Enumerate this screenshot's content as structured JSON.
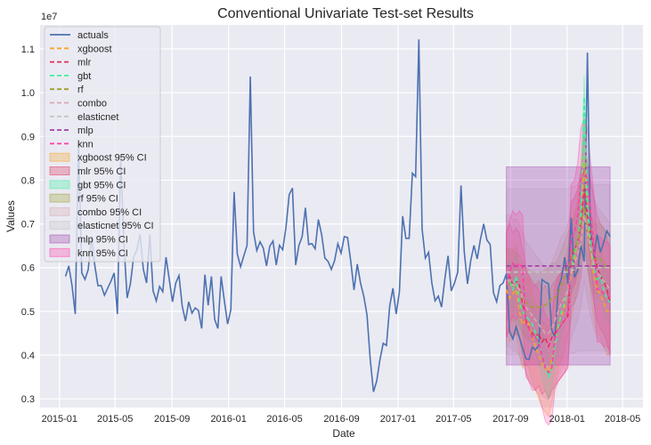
{
  "chart_data": {
    "type": "line",
    "title": "Conventional Univariate Test-set Results",
    "xlabel": "Date",
    "ylabel": "Values",
    "y_offset_label": "1e7",
    "xlim": [
      "2014-11-20",
      "2018-06-14"
    ],
    "ylim": [
      0.28,
      1.155
    ],
    "grid": true,
    "legend_placement": "upper-left",
    "x_ticks": [
      "2015-01",
      "2015-05",
      "2015-09",
      "2016-01",
      "2016-05",
      "2016-09",
      "2017-01",
      "2017-05",
      "2017-09",
      "2018-01",
      "2018-05"
    ],
    "y_ticks": [
      0.3,
      0.4,
      0.5,
      0.6,
      0.7,
      0.8,
      0.9,
      1.0,
      1.1
    ],
    "y_tick_labels": [
      "0.3",
      "0.4",
      "0.5",
      "0.6",
      "0.7",
      "0.8",
      "0.9",
      "1.0",
      "1.1"
    ],
    "dates": {
      "start": "2015-01-14",
      "frequency": "weekly"
    },
    "test_start_index": 136,
    "actuals": {
      "name": "actuals",
      "color": "#4c72b0",
      "values": [
        0.58,
        0.604,
        0.559,
        0.494,
        0.886,
        0.588,
        0.573,
        0.596,
        0.671,
        0.606,
        0.559,
        0.559,
        0.537,
        0.553,
        0.569,
        0.588,
        0.494,
        0.855,
        0.655,
        0.531,
        0.563,
        0.624,
        0.641,
        0.676,
        0.596,
        0.565,
        0.676,
        0.547,
        0.524,
        0.557,
        0.545,
        0.624,
        0.573,
        0.522,
        0.565,
        0.582,
        0.512,
        0.478,
        0.522,
        0.496,
        0.508,
        0.502,
        0.461,
        0.584,
        0.514,
        0.58,
        0.482,
        0.461,
        0.58,
        0.524,
        0.471,
        0.504,
        0.773,
        0.631,
        0.602,
        0.627,
        0.651,
        1.037,
        0.682,
        0.639,
        0.659,
        0.645,
        0.604,
        0.649,
        0.661,
        0.606,
        0.651,
        0.641,
        0.692,
        0.767,
        0.782,
        0.606,
        0.651,
        0.671,
        0.737,
        0.653,
        0.655,
        0.643,
        0.71,
        0.676,
        0.622,
        0.614,
        0.596,
        0.616,
        0.655,
        0.633,
        0.671,
        0.669,
        0.614,
        0.549,
        0.608,
        0.565,
        0.535,
        0.492,
        0.39,
        0.316,
        0.341,
        0.39,
        0.427,
        0.422,
        0.512,
        0.553,
        0.494,
        0.545,
        0.718,
        0.667,
        0.667,
        0.816,
        0.808,
        1.122,
        0.688,
        0.622,
        0.635,
        0.565,
        0.524,
        0.535,
        0.51,
        0.573,
        0.627,
        0.547,
        0.565,
        0.59,
        0.788,
        0.637,
        0.563,
        0.616,
        0.651,
        0.62,
        0.665,
        0.7,
        0.663,
        0.653,
        0.543,
        0.522,
        0.559,
        0.565,
        0.586,
        0.453,
        0.437,
        0.465,
        0.441,
        0.416,
        0.392,
        0.39,
        0.418,
        0.412,
        0.422,
        0.573,
        0.567,
        0.563,
        0.457,
        0.441,
        0.553,
        0.576,
        0.624,
        0.563,
        0.714,
        0.578,
        0.594,
        0.651,
        0.614,
        1.092,
        0.641,
        0.624,
        0.676,
        0.635,
        0.657,
        0.684,
        0.671
      ]
    },
    "models": [
      {
        "name": "xgboost",
        "ci_label": "xgboost 95% CI",
        "color": "#f5a623",
        "ci_halfwidth": 0.1,
        "values": [
          0.55,
          0.53,
          0.54,
          0.55,
          0.5,
          0.47,
          0.48,
          0.47,
          0.44,
          0.42,
          0.4,
          0.38,
          0.37,
          0.36,
          0.39,
          0.43,
          0.47,
          0.49,
          0.51,
          0.55,
          0.58,
          0.62,
          0.66,
          0.72,
          0.85,
          0.72,
          0.64,
          0.58,
          0.55,
          0.54,
          0.52,
          0.5,
          0.5
        ]
      },
      {
        "name": "mlr",
        "ci_label": "mlr 95% CI",
        "color": "#e0305a",
        "ci_halfwidth": 0.12,
        "values": [
          0.56,
          0.58,
          0.56,
          0.57,
          0.56,
          0.52,
          0.48,
          0.46,
          0.45,
          0.44,
          0.45,
          0.43,
          0.44,
          0.42,
          0.44,
          0.45,
          0.46,
          0.47,
          0.48,
          0.49,
          0.63,
          0.64,
          0.66,
          0.7,
          0.78,
          0.72,
          0.68,
          0.64,
          0.6,
          0.58,
          0.57,
          0.55,
          0.52
        ]
      },
      {
        "name": "gbt",
        "ci_label": "gbt 95% CI",
        "color": "#3cf0a0",
        "ci_halfwidth": 0.05,
        "values": [
          0.56,
          0.57,
          0.55,
          0.58,
          0.52,
          0.5,
          0.49,
          0.48,
          0.47,
          0.45,
          0.43,
          0.4,
          0.37,
          0.35,
          0.37,
          0.42,
          0.46,
          0.5,
          0.52,
          0.55,
          0.6,
          0.63,
          0.66,
          0.72,
          0.99,
          0.75,
          0.65,
          0.6,
          0.57,
          0.58,
          0.55,
          0.53,
          0.52
        ]
      },
      {
        "name": "rf",
        "ci_label": "rf 95% CI",
        "color": "#a0a030",
        "ci_halfwidth": 0.08,
        "values": [
          0.56,
          0.565,
          0.56,
          0.555,
          0.55,
          0.53,
          0.52,
          0.515,
          0.51,
          0.51,
          0.51,
          0.51,
          0.515,
          0.52,
          0.53,
          0.53,
          0.54,
          0.56,
          0.58,
          0.6,
          0.62,
          0.64,
          0.66,
          0.7,
          0.74,
          0.68,
          0.64,
          0.62,
          0.62,
          0.62,
          0.61,
          0.6,
          0.6
        ]
      },
      {
        "name": "combo",
        "ci_label": "combo 95% CI",
        "color": "#d8a8b0",
        "ci_halfwidth": 0.15,
        "values": [
          0.57,
          0.57,
          0.56,
          0.56,
          0.55,
          0.53,
          0.51,
          0.5,
          0.49,
          0.48,
          0.47,
          0.46,
          0.45,
          0.45,
          0.46,
          0.48,
          0.5,
          0.52,
          0.53,
          0.55,
          0.59,
          0.61,
          0.63,
          0.66,
          0.72,
          0.68,
          0.64,
          0.61,
          0.59,
          0.58,
          0.57,
          0.56,
          0.55
        ]
      },
      {
        "name": "elasticnet",
        "ci_label": "elasticnet 95% CI",
        "color": "#c4c4c4",
        "ci_halfwidth": 0.19,
        "values": [
          0.59,
          0.59,
          0.59,
          0.59,
          0.59,
          0.59,
          0.59,
          0.59,
          0.59,
          0.59,
          0.59,
          0.59,
          0.59,
          0.59,
          0.59,
          0.59,
          0.59,
          0.59,
          0.59,
          0.59,
          0.595,
          0.595,
          0.6,
          0.6,
          0.6,
          0.6,
          0.6,
          0.6,
          0.6,
          0.6,
          0.6,
          0.6,
          0.6
        ]
      },
      {
        "name": "mlp",
        "ci_label": "mlp 95% CI",
        "color": "#a040a8",
        "ci_halfwidth": 0.2265,
        "values": [
          0.604,
          0.604,
          0.604,
          0.604,
          0.604,
          0.604,
          0.604,
          0.604,
          0.604,
          0.604,
          0.604,
          0.604,
          0.604,
          0.604,
          0.604,
          0.604,
          0.604,
          0.604,
          0.604,
          0.604,
          0.604,
          0.604,
          0.604,
          0.604,
          0.604,
          0.604,
          0.604,
          0.604,
          0.604,
          0.604,
          0.604,
          0.604,
          0.604
        ]
      },
      {
        "name": "knn",
        "ci_label": "knn 95% CI",
        "color": "#ff3ea5",
        "ci_halfwidth": 0.12,
        "values": [
          0.56,
          0.59,
          0.61,
          0.6,
          0.61,
          0.6,
          0.47,
          0.46,
          0.44,
          0.44,
          0.43,
          0.4,
          0.37,
          0.36,
          0.37,
          0.44,
          0.46,
          0.47,
          0.48,
          0.5,
          0.67,
          0.68,
          0.72,
          0.8,
          0.82,
          0.8,
          0.72,
          0.65,
          0.55,
          0.55,
          0.54,
          0.54,
          0.53
        ]
      }
    ],
    "background_color": "#eaeaf2",
    "grid_color": "#ffffff"
  }
}
